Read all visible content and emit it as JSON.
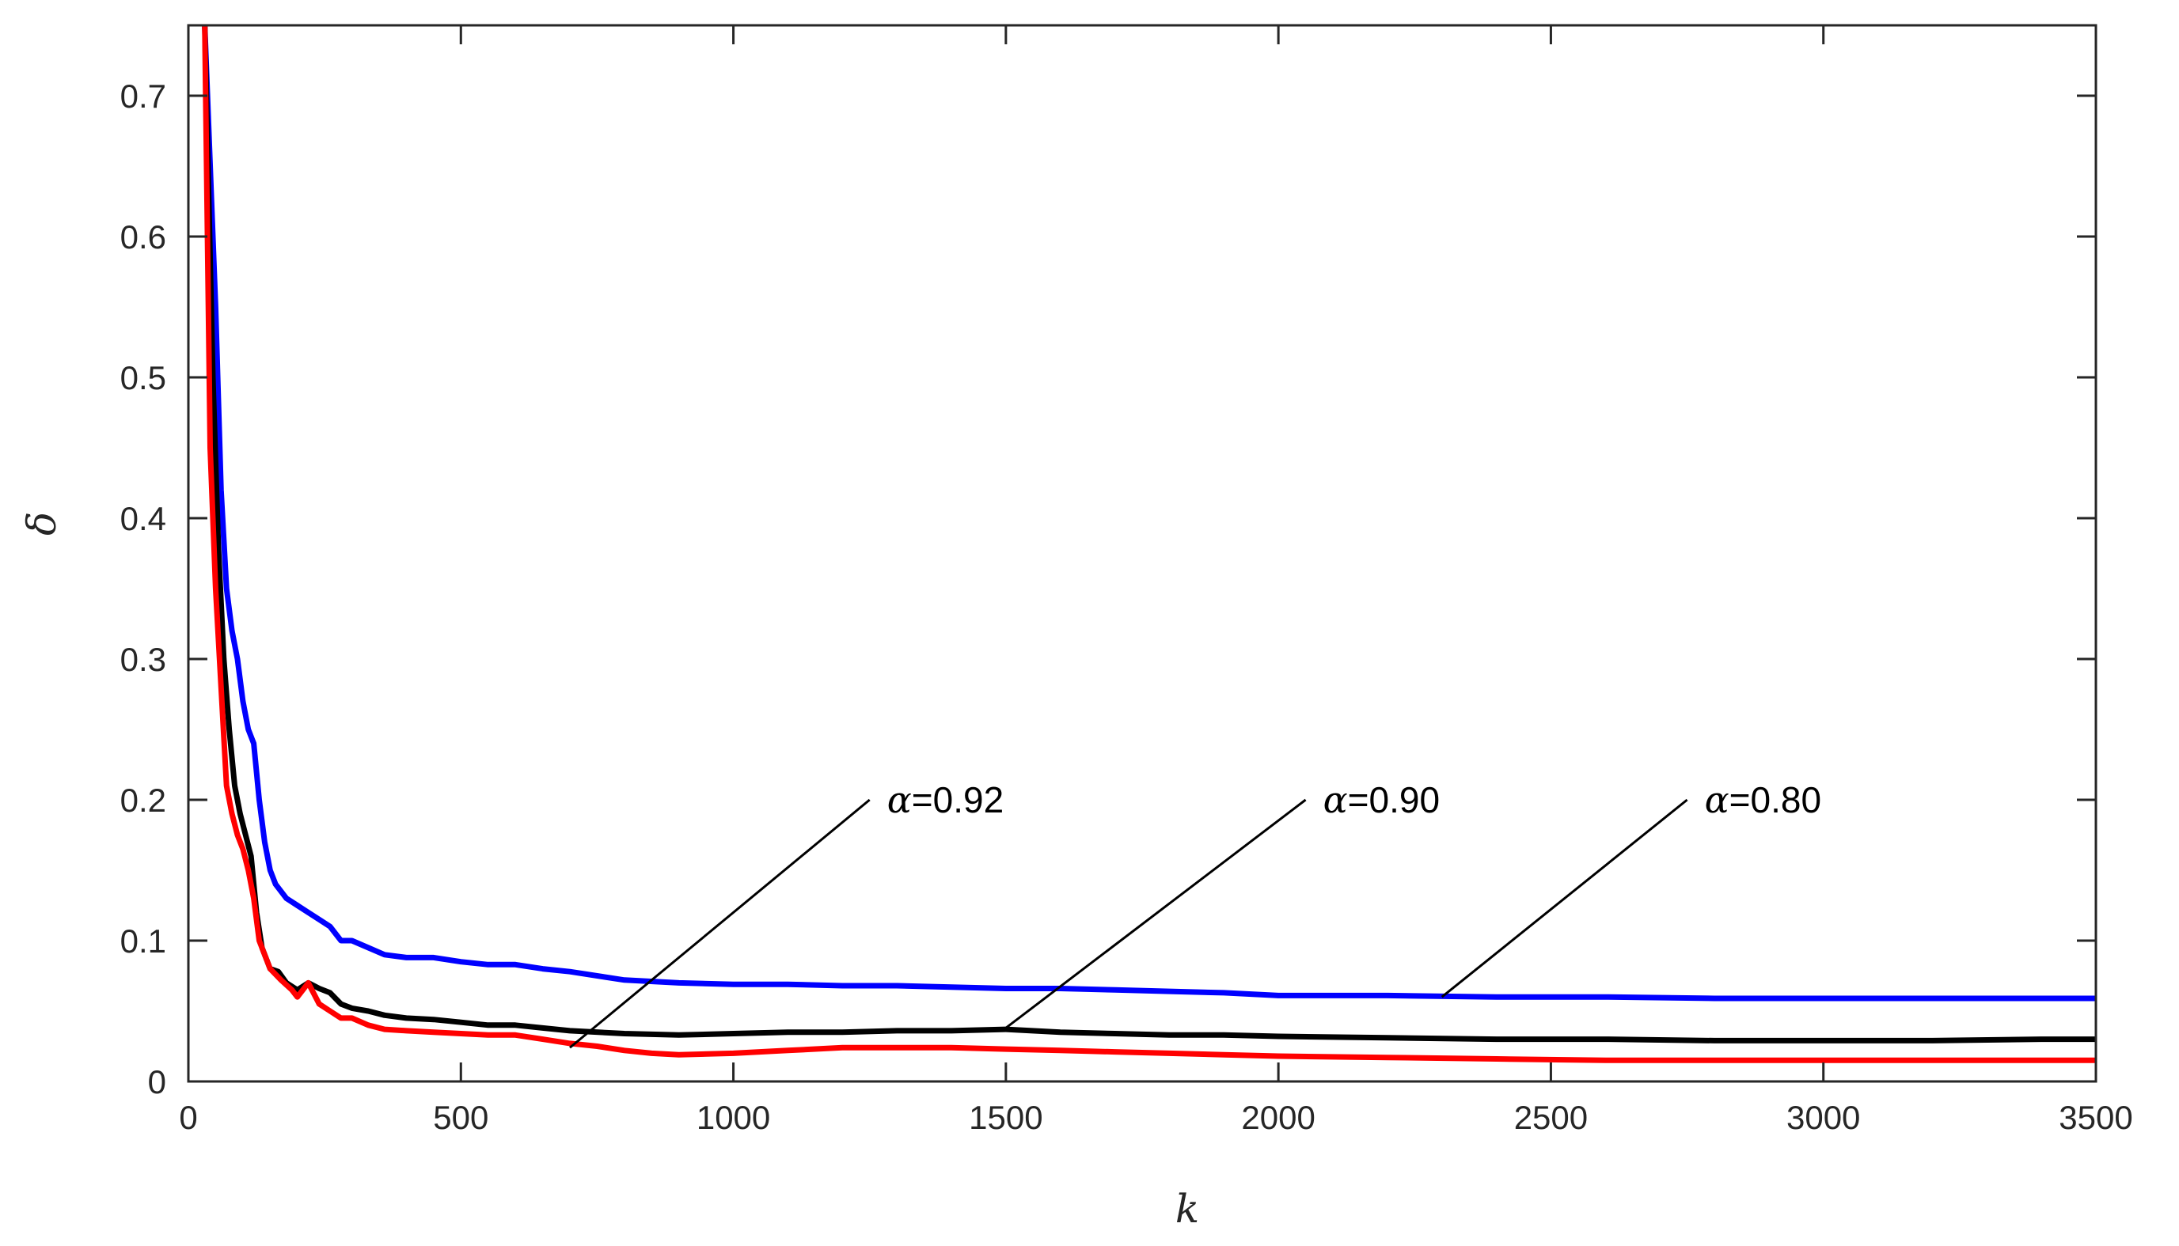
{
  "chart_data": {
    "type": "line",
    "title": "",
    "xlabel": "k",
    "ylabel": "δ",
    "xlim": [
      0,
      3500
    ],
    "ylim": [
      0,
      0.75
    ],
    "xticks": [
      0,
      500,
      1000,
      1500,
      2000,
      2500,
      3000,
      3500
    ],
    "xtick_labels": [
      "0",
      "500",
      "1000",
      "1500",
      "2000",
      "2500",
      "3000",
      "3500"
    ],
    "yticks": [
      0,
      0.1,
      0.2,
      0.3,
      0.4,
      0.5,
      0.6,
      0.7
    ],
    "ytick_labels": [
      "0",
      "0.1",
      "0.2",
      "0.3",
      "0.4",
      "0.5",
      "0.6",
      "0.7"
    ],
    "grid": false,
    "legend": "none",
    "series": [
      {
        "color": "#0000ff",
        "x": [
          30,
          50,
          60,
          70,
          80,
          90,
          100,
          110,
          120,
          130,
          140,
          150,
          160,
          180,
          200,
          220,
          240,
          260,
          280,
          300,
          330,
          360,
          400,
          450,
          500,
          550,
          600,
          650,
          700,
          800,
          900,
          1000,
          1100,
          1200,
          1300,
          1400,
          1500,
          1600,
          1700,
          1800,
          1900,
          2000,
          2200,
          2400,
          2600,
          2800,
          3000,
          3200,
          3400,
          3500
        ],
        "y": [
          0.75,
          0.55,
          0.42,
          0.35,
          0.32,
          0.3,
          0.27,
          0.25,
          0.24,
          0.2,
          0.17,
          0.15,
          0.14,
          0.13,
          0.125,
          0.12,
          0.115,
          0.11,
          0.1,
          0.1,
          0.095,
          0.09,
          0.088,
          0.088,
          0.085,
          0.083,
          0.083,
          0.08,
          0.078,
          0.072,
          0.07,
          0.069,
          0.069,
          0.068,
          0.068,
          0.067,
          0.066,
          0.066,
          0.065,
          0.064,
          0.063,
          0.061,
          0.061,
          0.06,
          0.06,
          0.059,
          0.059,
          0.059,
          0.059,
          0.059
        ]
      },
      {
        "color": "#000000",
        "x": [
          30,
          45,
          55,
          65,
          75,
          85,
          95,
          105,
          115,
          125,
          135,
          150,
          165,
          180,
          200,
          220,
          240,
          260,
          280,
          300,
          330,
          360,
          400,
          450,
          500,
          550,
          600,
          650,
          700,
          800,
          900,
          1000,
          1100,
          1200,
          1300,
          1400,
          1500,
          1600,
          1700,
          1800,
          1900,
          2000,
          2200,
          2400,
          2600,
          2800,
          3000,
          3200,
          3400,
          3500
        ],
        "y": [
          0.75,
          0.5,
          0.38,
          0.3,
          0.25,
          0.21,
          0.19,
          0.175,
          0.16,
          0.12,
          0.095,
          0.08,
          0.078,
          0.07,
          0.065,
          0.07,
          0.066,
          0.063,
          0.055,
          0.052,
          0.05,
          0.047,
          0.045,
          0.044,
          0.042,
          0.04,
          0.04,
          0.038,
          0.036,
          0.034,
          0.033,
          0.034,
          0.035,
          0.035,
          0.036,
          0.036,
          0.037,
          0.035,
          0.034,
          0.033,
          0.033,
          0.032,
          0.031,
          0.03,
          0.03,
          0.029,
          0.029,
          0.029,
          0.03,
          0.03
        ]
      },
      {
        "color": "#ff0000",
        "x": [
          30,
          40,
          50,
          60,
          70,
          80,
          90,
          100,
          110,
          120,
          130,
          150,
          170,
          190,
          200,
          220,
          240,
          260,
          280,
          300,
          330,
          360,
          400,
          450,
          500,
          550,
          600,
          650,
          700,
          750,
          800,
          850,
          900,
          1000,
          1100,
          1200,
          1300,
          1400,
          1500,
          1600,
          1700,
          1800,
          1900,
          2000,
          2200,
          2400,
          2600,
          2800,
          3000,
          3200,
          3400,
          3500
        ],
        "y": [
          0.75,
          0.45,
          0.35,
          0.28,
          0.21,
          0.19,
          0.175,
          0.165,
          0.15,
          0.13,
          0.1,
          0.08,
          0.072,
          0.065,
          0.06,
          0.07,
          0.055,
          0.05,
          0.045,
          0.045,
          0.04,
          0.037,
          0.036,
          0.035,
          0.034,
          0.033,
          0.033,
          0.03,
          0.027,
          0.025,
          0.022,
          0.02,
          0.019,
          0.02,
          0.022,
          0.024,
          0.024,
          0.024,
          0.023,
          0.022,
          0.021,
          0.02,
          0.019,
          0.018,
          0.017,
          0.016,
          0.015,
          0.015,
          0.015,
          0.015,
          0.015,
          0.015
        ]
      }
    ],
    "annotations": [
      {
        "symbol": "α",
        "text": "=0.92",
        "point": [
          700,
          0.024
        ],
        "label_at": [
          1250,
          0.2
        ]
      },
      {
        "symbol": "α",
        "text": "=0.90",
        "point": [
          1500,
          0.038
        ],
        "label_at": [
          2050,
          0.2
        ]
      },
      {
        "symbol": "α",
        "text": "=0.80",
        "point": [
          2300,
          0.06
        ],
        "label_at": [
          2750,
          0.2
        ]
      }
    ]
  }
}
